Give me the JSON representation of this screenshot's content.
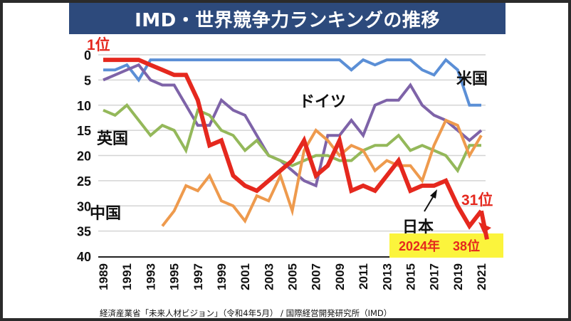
{
  "chart_data": {
    "type": "line",
    "title": "IMD・世界競争力ランキングの推移",
    "xlabel": "",
    "ylabel": "",
    "ylim": [
      0,
      40
    ],
    "y_inverted": true,
    "yticks": [
      0,
      5,
      10,
      15,
      20,
      25,
      30,
      35,
      40
    ],
    "grid": true,
    "x": [
      1989,
      1990,
      1991,
      1992,
      1993,
      1994,
      1995,
      1996,
      1997,
      1998,
      1999,
      2000,
      2001,
      2002,
      2003,
      2004,
      2005,
      2006,
      2007,
      2008,
      2009,
      2010,
      2011,
      2012,
      2013,
      2014,
      2015,
      2016,
      2017,
      2018,
      2019,
      2020,
      2021
    ],
    "xticks": [
      "1989",
      "1991",
      "1993",
      "1995",
      "1997",
      "1999",
      "2001",
      "2003",
      "2005",
      "2007",
      "2009",
      "2011",
      "2013",
      "2015",
      "2017",
      "2019",
      "2021"
    ],
    "series": [
      {
        "name": "米国",
        "key": "usa",
        "color": "#5b8fd6",
        "values": [
          3,
          3,
          2,
          5,
          1,
          1,
          1,
          1,
          1,
          1,
          1,
          1,
          1,
          1,
          1,
          1,
          1,
          1,
          1,
          1,
          1,
          3,
          1,
          2,
          1,
          1,
          1,
          3,
          4,
          1,
          3,
          10,
          10
        ]
      },
      {
        "name": "ドイツ",
        "key": "germany",
        "color": "#7e63a8",
        "values": [
          5,
          4,
          3,
          2,
          5,
          6,
          6,
          10,
          14,
          14,
          9,
          11,
          12,
          16,
          20,
          21,
          23,
          25,
          26,
          16,
          16,
          13,
          16,
          10,
          9,
          9,
          6,
          10,
          12,
          13,
          15,
          17,
          15
        ]
      },
      {
        "name": "英国",
        "key": "uk",
        "color": "#94b85a",
        "values": [
          11,
          12,
          10,
          13,
          16,
          14,
          15,
          19,
          11,
          12,
          15,
          16,
          19,
          17,
          20,
          21,
          22,
          21,
          20,
          20,
          21,
          21,
          19,
          18,
          18,
          16,
          19,
          18,
          19,
          20,
          23,
          18,
          18
        ]
      },
      {
        "name": "中国",
        "key": "china",
        "color": "#ee9a4d",
        "values": [
          null,
          null,
          null,
          null,
          null,
          34,
          31,
          26,
          27,
          24,
          29,
          30,
          33,
          28,
          29,
          24,
          31,
          19,
          15,
          17,
          20,
          18,
          19,
          23,
          21,
          22,
          22,
          25,
          18,
          13,
          14,
          20,
          16
        ]
      },
      {
        "name": "日本",
        "key": "japan",
        "color": "#e5281e",
        "values": [
          1,
          1,
          1,
          1,
          2,
          3,
          4,
          4,
          9,
          18,
          17,
          24,
          26,
          27,
          25,
          23,
          21,
          17,
          24,
          22,
          17,
          27,
          26,
          27,
          24,
          21,
          27,
          26,
          26,
          25,
          30,
          34,
          31
        ]
      }
    ],
    "annotations": [
      {
        "text": "1位",
        "target": "日本",
        "year": 1989
      },
      {
        "text": "31位",
        "target": "日本",
        "year": 2021
      },
      {
        "text": "2024年　38位",
        "target": "日本",
        "note": "highlighted box"
      }
    ]
  },
  "title": "IMD・世界競争力ランキングの推移",
  "labels": {
    "usa": "米国",
    "germany": "ドイツ",
    "uk": "英国",
    "china": "中国",
    "japan": "日本",
    "first_place": "1位",
    "rank_2021": "31位",
    "rank_2024": "2024年　38位"
  },
  "source": "経済産業省「未来人材ビジョン」（令和4年5月） / 国際経営開発研究所（IMD）",
  "colors": {
    "title_bg": "#2d4a7c",
    "highlight_bg": "#fbf43c",
    "accent_red": "#e5281e"
  }
}
